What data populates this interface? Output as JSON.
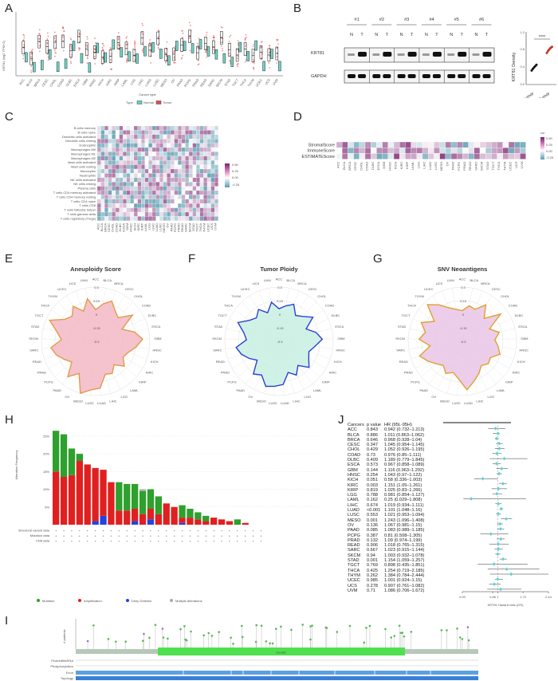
{
  "panels": {
    "A": "A",
    "B": "B",
    "C": "C",
    "D": "D",
    "E": "E",
    "F": "F",
    "G": "G",
    "H": "H",
    "I": "I",
    "J": "J"
  },
  "panel_A": {
    "ylabel": "KRT81 (log2 TPM+1)",
    "xlabel": "Cancer type",
    "legend_title": "Type",
    "legend": [
      "Normal",
      "Tumor"
    ],
    "colors": {
      "normal": "#5fd3c4",
      "tumor": "#e84a4a"
    }
  },
  "panel_B": {
    "lanes": [
      "#1",
      "#2",
      "#3",
      "#4",
      "#5",
      "#6"
    ],
    "lane_labels": [
      "N",
      "T"
    ],
    "bands": [
      "KRT81",
      "GAPDH"
    ],
    "dot_ylabel": "KRT81 Density",
    "dot_significance": "****",
    "dot_groups": [
      "Para-tumor",
      "Tumor"
    ],
    "dot_yticks": [
      "0.0",
      "0.4",
      "0.8",
      "1.2"
    ],
    "para_values": [
      0.32,
      0.36,
      0.39,
      0.42,
      0.45
    ],
    "tumor_values": [
      0.72,
      0.76,
      0.79,
      0.82,
      0.84,
      0.86
    ]
  },
  "panel_C": {
    "rows": [
      "B cells memory",
      "B cells naive",
      "Dendritic cells activated",
      "Dendritic cells resting",
      "Eosinophils",
      "Macrophages M0",
      "Macrophages M1",
      "Macrophages M2",
      "Mast cells activated",
      "Mast cells resting",
      "Monocytes",
      "Neutrophils",
      "NK cells activated",
      "NK cells resting",
      "Plasma cells",
      "T cells CD4 memory activated",
      "T cells CD4 memory resting",
      "T cells CD4 naive",
      "T cells CD8",
      "T cells follicular helper",
      "T cells gamma delta",
      "T cells regulatory (Tregs)"
    ],
    "legend_ticks": [
      "0.50",
      "0.25",
      "0.00",
      "-0.25"
    ]
  },
  "panel_D": {
    "rows": [
      "StromalScore",
      "ImmuneScore",
      "ESTIMATEScore"
    ],
    "legend_title": "cor",
    "legend_ticks": [
      "0.50",
      "0.25",
      "0.00",
      "-0.25"
    ]
  },
  "cancers": [
    "ACC",
    "BLCA",
    "BRCA",
    "CESC",
    "CHOL",
    "COAD",
    "DLBC",
    "ESCA",
    "GBM",
    "HNSC",
    "KICH",
    "KIRC",
    "KIRP",
    "LAML",
    "LGG",
    "LIHC",
    "LUAD",
    "LUSC",
    "MESO",
    "OV",
    "PAAD",
    "PCPG",
    "PRAD",
    "READ",
    "SARC",
    "SKCM",
    "STAD",
    "TGCT",
    "THCA",
    "THYM",
    "UCEC",
    "UCS",
    "UVM"
  ],
  "radar": {
    "E": {
      "title": "Aneuploidy Score",
      "fill": "#f2b8c6",
      "stroke": "#e39a4a",
      "values": [
        0.05,
        0.12,
        0.18,
        0.1,
        0.06,
        0.2,
        0.02,
        0.14,
        0.22,
        0.15,
        0.08,
        0.05,
        0.12,
        0.03,
        0.1,
        0.08,
        0.22,
        0.24,
        0.3,
        0.1,
        0.2,
        0.05,
        0.1,
        0.16,
        0.2,
        0.08,
        0.14,
        0.26,
        0.12,
        0.08,
        0.16,
        0.06,
        0.18
      ]
    },
    "F": {
      "title": "Tumor Ploidy",
      "fill": "#c8f0e2",
      "stroke": "#2b3fd6",
      "values": [
        0.06,
        0.1,
        0.14,
        0.04,
        0.08,
        0.16,
        0.03,
        0.12,
        0.18,
        0.1,
        0.05,
        0.08,
        0.14,
        0.04,
        0.12,
        0.06,
        0.18,
        0.2,
        0.22,
        0.12,
        0.16,
        0.02,
        0.08,
        0.14,
        0.18,
        0.06,
        0.1,
        0.2,
        0.1,
        0.06,
        0.12,
        0.04,
        0.14
      ]
    },
    "G": {
      "title": "SNV Neoantigens",
      "fill": "#e9c6e6",
      "stroke": "#e0a030",
      "values": [
        0.04,
        0.1,
        0.08,
        0.18,
        0.05,
        0.22,
        0.03,
        0.12,
        0.06,
        0.1,
        0.14,
        0.06,
        0.08,
        0.04,
        0.1,
        0.16,
        0.24,
        0.12,
        0.06,
        0.1,
        0.04,
        0.08,
        0.14,
        0.2,
        0.06,
        0.18,
        0.12,
        0.2,
        0.08,
        0.26,
        0.18,
        0.1,
        0.06
      ]
    },
    "rticks": [
      "0.3",
      "0.15",
      "0",
      "-0.15",
      "-0.3"
    ]
  },
  "panel_H": {
    "ylabel": "Alteration Frequency",
    "yticks": [
      "25%",
      "20%",
      "15%",
      "10%",
      "5%"
    ],
    "row_labels": [
      "Structural variant data",
      "Mutation data",
      "CNA data"
    ],
    "legend": [
      "Mutation",
      "Amplification",
      "Deep Deletion",
      "Multiple Alterations"
    ],
    "colors": {
      "mutation": "#2ea02e",
      "amplification": "#e02020",
      "deletion": "#2244dd",
      "multiple": "#aaaaaa"
    },
    "chart_data": {
      "type": "bar",
      "ylim": [
        0,
        27
      ],
      "mutation": [
        11.5,
        12.0,
        7.5,
        2.0,
        0.0,
        0.0,
        0.0,
        0.0,
        8.0,
        7.5,
        7.0,
        6.5,
        5.5,
        5.0,
        0.0,
        0.0,
        3.5,
        2.5,
        2.0,
        1.5,
        0.0,
        0.0,
        0.0,
        1.5,
        0.0,
        0.0,
        0.0
      ],
      "amplification": [
        15.0,
        13.5,
        14.0,
        18.0,
        17.0,
        15.0,
        13.0,
        12.0,
        4.0,
        4.0,
        3.5,
        3.0,
        3.0,
        3.0,
        6.0,
        5.0,
        1.5,
        2.0,
        1.5,
        1.0,
        2.0,
        1.5,
        1.0,
        0.0,
        0.5,
        0.0,
        0.0
      ],
      "deletion": [
        0.0,
        0.0,
        0.0,
        0.0,
        0.0,
        1.0,
        2.5,
        0.0,
        0.0,
        0.0,
        1.0,
        0.0,
        1.5,
        0.0,
        0.0,
        0.0,
        0.5,
        0.0,
        0.0,
        0.0,
        0.0,
        0.0,
        0.0,
        0.0,
        0.0,
        0.0,
        0.0
      ],
      "multiple": [
        0.0,
        0.0,
        0.0,
        0.0,
        0.0,
        0.0,
        0.0,
        0.0,
        0.0,
        0.0,
        0.0,
        0.5,
        0.0,
        0.0,
        0.0,
        0.0,
        0.0,
        0.0,
        0.0,
        0.0,
        0.0,
        0.0,
        0.0,
        0.0,
        0.0,
        0.0,
        0.0
      ]
    }
  },
  "panel_J": {
    "headers": [
      "Cancers",
      "p value",
      "HR (95L-95H)"
    ],
    "rows": [
      [
        "ACC",
        "0.843",
        "0.942 (0.732–1.213)"
      ],
      [
        "BLCA",
        "0.886",
        "1.011 (0.863–1.062)"
      ],
      [
        "BRCA",
        "0.646",
        "0.968 (0.928–1.04)"
      ],
      [
        "CESC",
        "0.347",
        "1.045 (0.954–1.145)"
      ],
      [
        "CHOL",
        "0.429",
        "1.052 (0.926–1.195)"
      ],
      [
        "COAD",
        "0.73",
        "0.976 (0.85–1.111)"
      ],
      [
        "DLBC",
        "0.409",
        "1.189 (0.779–1.845)"
      ],
      [
        "ESCA",
        "0.573",
        "0.967 (0.858–1.089)"
      ],
      [
        "GBM",
        "0.144",
        "1.116 (0.963–1.292)"
      ],
      [
        "HNSC",
        "0.254",
        "1.043 (0.97–1.122)"
      ],
      [
        "KICH",
        "0.051",
        "0.58 (0.336–1.003)"
      ],
      [
        "KIRC",
        "0.003",
        "1.151 (1.05–1.261)"
      ],
      [
        "KIRP",
        "0.819",
        "1.025 (0.83–1.266)"
      ],
      [
        "LGG",
        "0.788",
        "0.981 (0.854–1.127)"
      ],
      [
        "LAML",
        "0.162",
        "0.25 (0.029–1.808)"
      ],
      [
        "LIHC",
        "0.674",
        "1.019 (0.934–1.111)"
      ],
      [
        "LUAD",
        "<0.001",
        "1.101 (1.048–1.16)"
      ],
      [
        "LUSC",
        "0.553",
        "1.021 (0.953–1.094)"
      ],
      [
        "MESO",
        "0.001",
        "1.243 (1.096–1.408)"
      ],
      [
        "OV",
        "0.136",
        "1.067 (0.981–1.15)"
      ],
      [
        "PAAD",
        "0.085",
        "1.083 (0.989–1.185)"
      ],
      [
        "PCPG",
        "0.387",
        "0.81 (0.508–1.305)"
      ],
      [
        "PRAD",
        "0.132",
        "1.09 (0.974–1.199)"
      ],
      [
        "READ",
        "0.906",
        "1.018 (0.765–1.315)"
      ],
      [
        "SARC",
        "0.667",
        "1.023 (0.915–1.144)"
      ],
      [
        "SKCM",
        "0.94",
        "1.003 (0.932–1.078)"
      ],
      [
        "STAD",
        "0.001",
        "1.154 (1.059–1.257)"
      ],
      [
        "TGCT",
        "0.769",
        "0.898 (0.435–1.851)"
      ],
      [
        "THCA",
        "0.425",
        "1.254 (0.719–2.185)"
      ],
      [
        "THYM",
        "0.262",
        "1.384 (0.784–2.444)"
      ],
      [
        "UCEC",
        "0.985",
        "1.001 (0.924–1.15)"
      ],
      [
        "UCS",
        "0.278",
        "0.907 (0.761–1.082)"
      ],
      [
        "UVM",
        "0.71",
        "1.086 (0.706–1.672)"
      ]
    ],
    "xticks": [
      "0.00",
      "0.86",
      "1",
      "1.72",
      "2.44"
    ],
    "xlabel": "KRT81 Hazard ratio (OS)"
  },
  "panel_I": {
    "ylabel": "# patients",
    "domain_label": "Keratin",
    "track_labels": [
      "ProteinBitsRNA",
      "Phosphorylation",
      "Exon",
      "Topology"
    ]
  }
}
